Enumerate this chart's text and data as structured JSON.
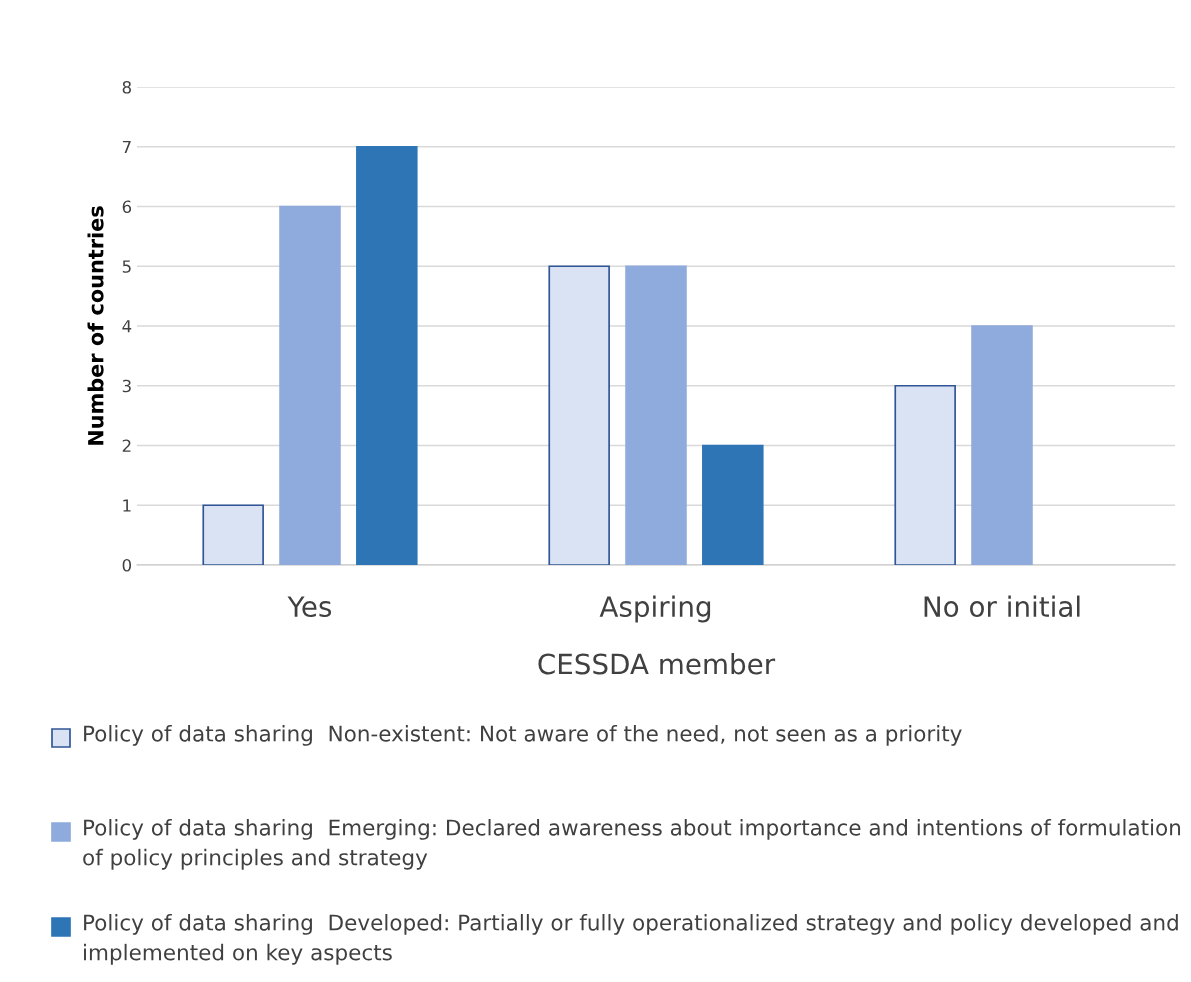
{
  "chart_data": {
    "type": "bar",
    "xlabel": "CESSDA member",
    "ylabel": "Number of countries",
    "categories": [
      "Yes",
      "Aspiring",
      "No or initial"
    ],
    "series": [
      {
        "name": "Policy of data sharing  Non-existent: Not aware of the need, not seen as a priority",
        "color": "#dae3f3",
        "values": [
          1,
          5,
          3
        ]
      },
      {
        "name": "Policy of data sharing  Emerging: Declared awareness about importance and intentions of formulation of policy principles and strategy",
        "color": "#8faadc",
        "values": [
          6,
          5,
          4
        ]
      },
      {
        "name": "Policy of data sharing  Developed: Partially or fully operationalized strategy and policy developed and implemented on key aspects",
        "color": "#2e75b6",
        "values": [
          7,
          2,
          null
        ]
      }
    ],
    "ylim": [
      0,
      8
    ],
    "yticks": [
      0,
      1,
      2,
      3,
      4,
      5,
      6,
      7,
      8
    ],
    "grid": "y",
    "legend": "bottom"
  }
}
